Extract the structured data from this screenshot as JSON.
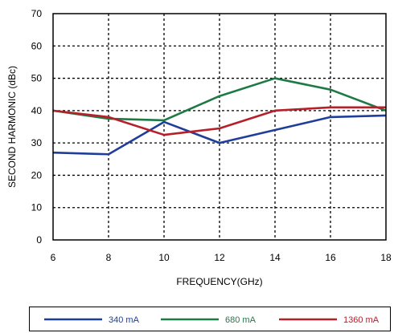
{
  "chart_data": {
    "type": "line",
    "xlabel": "FREQUENCY(GHz)",
    "ylabel": "SECOND HARMONIC (dBc)",
    "xlim": [
      6,
      18
    ],
    "ylim": [
      0,
      70
    ],
    "x_ticks": [
      "6",
      "8",
      "10",
      "12",
      "14",
      "16",
      "18"
    ],
    "y_ticks": [
      "0",
      "10",
      "20",
      "30",
      "40",
      "50",
      "60",
      "70"
    ],
    "grid": true,
    "legend_position": "bottom",
    "x": [
      6,
      8,
      10,
      12,
      14,
      16,
      18
    ],
    "series": [
      {
        "name": "340 mA",
        "color": "#1f3e9a",
        "values": [
          27,
          26.5,
          36.5,
          30,
          34,
          38,
          38.5
        ]
      },
      {
        "name": "680 mA",
        "color": "#1e7a45",
        "values": [
          40,
          37.5,
          37,
          44.5,
          50,
          46.5,
          40
        ]
      },
      {
        "name": "1360 mA",
        "color": "#b5202a",
        "values": [
          40,
          38,
          32.5,
          34.5,
          40,
          41,
          41
        ]
      }
    ]
  }
}
